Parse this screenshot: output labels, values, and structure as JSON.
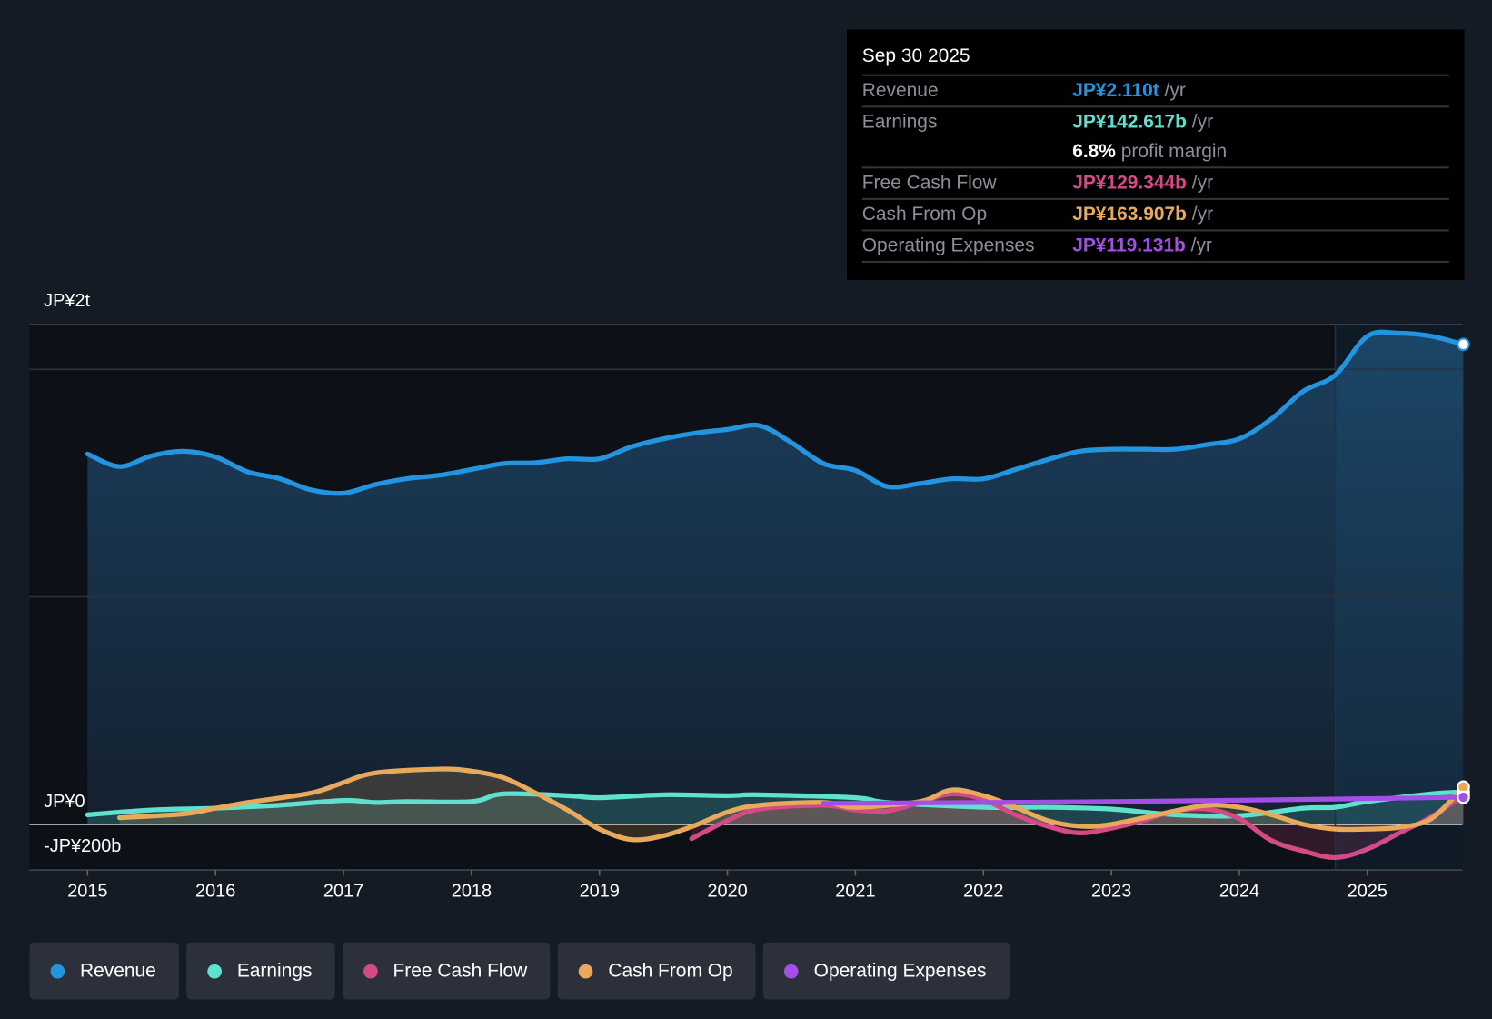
{
  "tooltip": {
    "date": "Sep 30 2025",
    "rows": [
      {
        "label": "Revenue",
        "value": "JP¥2.110t",
        "unit": "/yr",
        "color": "#2394df"
      },
      {
        "label": "Earnings",
        "value": "JP¥142.617b",
        "unit": "/yr",
        "color": "#5fe1d0"
      },
      {
        "label": "",
        "value": "6.8%",
        "unit": "profit margin",
        "color": "#ffffff"
      },
      {
        "label": "Free Cash Flow",
        "value": "JP¥129.344b",
        "unit": "/yr",
        "color": "#d44a87"
      },
      {
        "label": "Cash From Op",
        "value": "JP¥163.907b",
        "unit": "/yr",
        "color": "#e8aa5a"
      },
      {
        "label": "Operating Expenses",
        "value": "JP¥119.131b",
        "unit": "/yr",
        "color": "#a44ee8"
      }
    ]
  },
  "chart_data": {
    "type": "line",
    "units": "JPY billions",
    "y_tick_labels": [
      "JP¥2t",
      "JP¥0",
      "-JP¥200b"
    ],
    "ylim": [
      -200,
      2200
    ],
    "xlim": [
      2015,
      2025.75
    ],
    "x_tick_labels": [
      "2015",
      "2016",
      "2017",
      "2018",
      "2019",
      "2020",
      "2021",
      "2022",
      "2023",
      "2024",
      "2025"
    ],
    "x_ticks": [
      2015,
      2016,
      2017,
      2018,
      2019,
      2020,
      2021,
      2022,
      2023,
      2024,
      2025
    ],
    "highlight_from": 2024.75,
    "series": [
      {
        "name": "Revenue",
        "color": "#2394df",
        "fill": true,
        "x": [
          2015,
          2015.25,
          2015.5,
          2015.75,
          2016,
          2016.25,
          2016.5,
          2016.75,
          2017,
          2017.25,
          2017.5,
          2017.75,
          2018,
          2018.25,
          2018.5,
          2018.75,
          2019,
          2019.25,
          2019.5,
          2019.75,
          2020,
          2020.25,
          2020.5,
          2020.75,
          2021,
          2021.25,
          2021.5,
          2021.75,
          2022,
          2022.25,
          2022.5,
          2022.75,
          2023,
          2023.25,
          2023.5,
          2023.75,
          2024,
          2024.25,
          2024.5,
          2024.75,
          2025,
          2025.25,
          2025.5,
          2025.75
        ],
        "y": [
          1628,
          1573,
          1620,
          1640,
          1615,
          1550,
          1520,
          1470,
          1456,
          1494,
          1520,
          1535,
          1560,
          1586,
          1590,
          1607,
          1607,
          1660,
          1695,
          1720,
          1736,
          1753,
          1678,
          1586,
          1556,
          1485,
          1498,
          1519,
          1519,
          1560,
          1603,
          1640,
          1649,
          1649,
          1649,
          1670,
          1695,
          1782,
          1904,
          1975,
          2146,
          2159,
          2146,
          2110
        ]
      },
      {
        "name": "Earnings",
        "color": "#5fe1d0",
        "fill": true,
        "x": [
          2015,
          2015.5,
          2016,
          2016.5,
          2017,
          2017.25,
          2017.5,
          2018,
          2018.25,
          2018.75,
          2019,
          2019.5,
          2020,
          2020.25,
          2021,
          2021.25,
          2022,
          2022.5,
          2023,
          2023.5,
          2024,
          2024.5,
          2024.75,
          2025,
          2025.5,
          2025.75
        ],
        "y": [
          42,
          63,
          71,
          84,
          105,
          96,
          100,
          100,
          134,
          126,
          117,
          130,
          126,
          130,
          117,
          96,
          75,
          75,
          67,
          42,
          38,
          71,
          75,
          100,
          134,
          142.6
        ]
      },
      {
        "name": "Free Cash Flow",
        "color": "#d44a87",
        "fill": true,
        "x": [
          2019.72,
          2020,
          2020.25,
          2020.75,
          2021,
          2021.25,
          2021.5,
          2021.75,
          2022,
          2022.25,
          2022.5,
          2022.75,
          2023,
          2023.25,
          2023.5,
          2023.75,
          2024,
          2024.25,
          2024.5,
          2024.75,
          2025,
          2025.25,
          2025.5,
          2025.75
        ],
        "y": [
          -63,
          17,
          67,
          84,
          63,
          59,
          96,
          134,
          109,
          42,
          -8,
          -38,
          -17,
          17,
          59,
          67,
          25,
          -71,
          -117,
          -146,
          -109,
          -38,
          33,
          129.3
        ]
      },
      {
        "name": "Cash From Op",
        "color": "#e8aa5a",
        "fill": true,
        "x": [
          2015.25,
          2015.75,
          2016,
          2016.25,
          2016.75,
          2017,
          2017.25,
          2017.75,
          2018,
          2018.25,
          2018.5,
          2018.75,
          2019,
          2019.25,
          2019.5,
          2019.75,
          2020,
          2020.25,
          2020.75,
          2021,
          2021.5,
          2021.75,
          2022,
          2022.25,
          2022.5,
          2022.75,
          2023,
          2023.5,
          2023.75,
          2024,
          2024.25,
          2024.5,
          2024.75,
          2025,
          2025.25,
          2025.5,
          2025.75
        ],
        "y": [
          29,
          46,
          71,
          96,
          138,
          184,
          226,
          243,
          234,
          205,
          138,
          63,
          -21,
          -67,
          -50,
          -4,
          54,
          84,
          96,
          75,
          100,
          151,
          126,
          75,
          17,
          -8,
          0,
          59,
          84,
          75,
          42,
          0,
          -21,
          -21,
          -13,
          25,
          163.9
        ]
      },
      {
        "name": "Operating Expenses",
        "color": "#a44ee8",
        "fill": false,
        "x": [
          2020.75,
          2022,
          2023,
          2024,
          2025,
          2025.75
        ],
        "y": [
          92,
          96,
          100,
          106,
          113,
          119.1
        ]
      }
    ]
  },
  "legend": [
    {
      "label": "Revenue",
      "color": "#2394df"
    },
    {
      "label": "Earnings",
      "color": "#5fe1d0"
    },
    {
      "label": "Free Cash Flow",
      "color": "#d44a87"
    },
    {
      "label": "Cash From Op",
      "color": "#e8aa5a"
    },
    {
      "label": "Operating Expenses",
      "color": "#a44ee8"
    }
  ]
}
